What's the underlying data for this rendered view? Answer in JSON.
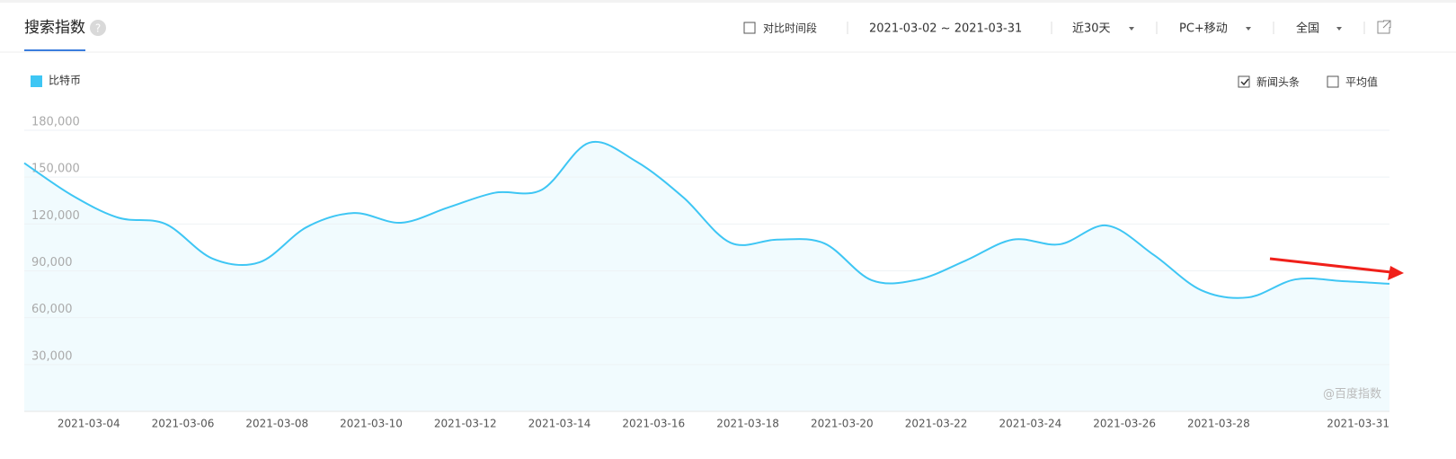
{
  "header": {
    "title": "搜索指数",
    "compare": "对比时间段",
    "date_range": "2021-03-02 ~ 2021-03-31",
    "period": "近30天",
    "device": "PC+移动",
    "region": "全国"
  },
  "options": {
    "news": "新闻头条",
    "average": "平均值"
  },
  "watermark": "@百度指数",
  "chart_data": {
    "type": "line",
    "categories": [
      null,
      null,
      "2021-03-04",
      null,
      "2021-03-06",
      null,
      "2021-03-08",
      null,
      "2021-03-10",
      null,
      "2021-03-12",
      null,
      "2021-03-14",
      null,
      "2021-03-16",
      null,
      "2021-03-18",
      null,
      "2021-03-20",
      null,
      "2021-03-22",
      null,
      "2021-03-24",
      null,
      "2021-03-26",
      null,
      "2021-03-28",
      null,
      null,
      "2021-03-31"
    ],
    "series": [
      {
        "name": "比特币",
        "color": "#3ec6f4",
        "values": [
          159000,
          138600,
          124000,
          120000,
          97800,
          95500,
          118000,
          127000,
          120800,
          130500,
          140000,
          142000,
          172000,
          160000,
          137000,
          108000,
          110000,
          107500,
          84000,
          84500,
          96600,
          110000,
          107000,
          119000,
          100000,
          77600,
          73000,
          84500,
          83400,
          81700
        ]
      }
    ],
    "ylim": [
      0,
      180000
    ],
    "yticks": [
      {
        "value": 30000,
        "label": "30,000"
      },
      {
        "value": 60000,
        "label": "60,000"
      },
      {
        "value": 90000,
        "label": "90,000"
      },
      {
        "value": 120000,
        "label": "120,000"
      },
      {
        "value": 150000,
        "label": "150,000"
      },
      {
        "value": 180000,
        "label": "180,000"
      }
    ],
    "grid": true
  }
}
